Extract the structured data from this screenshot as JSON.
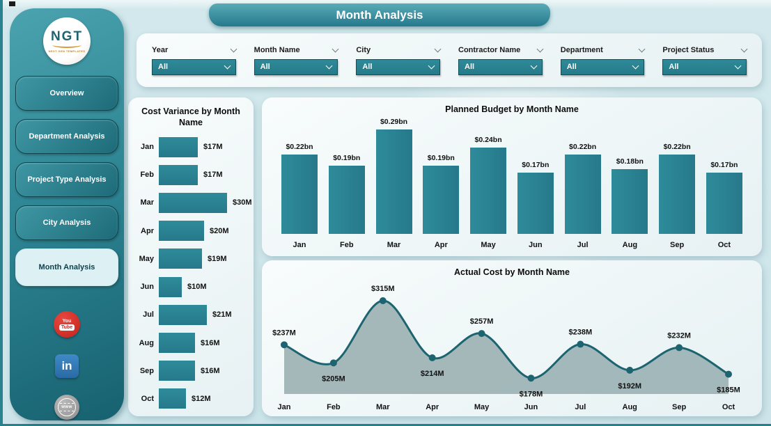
{
  "banner": {
    "title": "Month Analysis"
  },
  "sidebar": {
    "logo": {
      "text": "NGT",
      "subtext": "NEXT GEN TEMPLATES"
    },
    "items": [
      {
        "label": "Overview",
        "active": false
      },
      {
        "label": "Department Analysis",
        "active": false
      },
      {
        "label": "Project Type Analysis",
        "active": false
      },
      {
        "label": "City Analysis",
        "active": false
      },
      {
        "label": "Month Analysis",
        "active": true
      }
    ],
    "social": [
      {
        "name": "youtube",
        "you": "You",
        "tube": "Tube"
      },
      {
        "name": "linkedin",
        "text": "in"
      },
      {
        "name": "website",
        "text": "www"
      }
    ]
  },
  "filters": [
    {
      "label": "Year",
      "value": "All"
    },
    {
      "label": "Month Name",
      "value": "All"
    },
    {
      "label": "City",
      "value": "All"
    },
    {
      "label": "Contractor Name",
      "value": "All"
    },
    {
      "label": "Department",
      "value": "All"
    },
    {
      "label": "Project Status",
      "value": "All"
    }
  ],
  "colors": {
    "teal_main": "#2a8291",
    "teal_dark": "#1c6470",
    "area_fill": "#9fb4b6",
    "page_bg": "#cde5ea",
    "card_bg": "#eef6f7",
    "active_nav_bg": "#ddf0f4",
    "youtube_red": "#c4231c",
    "linkedin_blue": "#2a6aa5"
  },
  "chart_data": [
    {
      "type": "bar",
      "orientation": "horizontal",
      "title": "Cost Variance by Month Name",
      "categories": [
        "Jan",
        "Feb",
        "Mar",
        "Apr",
        "May",
        "Jun",
        "Jul",
        "Aug",
        "Sep",
        "Oct"
      ],
      "values": [
        17,
        17,
        30,
        20,
        19,
        10,
        21,
        16,
        16,
        12
      ],
      "labels": [
        "$17M",
        "$17M",
        "$30M",
        "$20M",
        "$19M",
        "$10M",
        "$21M",
        "$16M",
        "$16M",
        "$12M"
      ],
      "xlim": [
        0,
        30
      ],
      "grid": false,
      "legend": "none"
    },
    {
      "type": "bar",
      "orientation": "vertical",
      "title": "Planned Budget by Month Name",
      "categories": [
        "Jan",
        "Feb",
        "Mar",
        "Apr",
        "May",
        "Jun",
        "Jul",
        "Aug",
        "Sep",
        "Oct"
      ],
      "values": [
        0.22,
        0.19,
        0.29,
        0.19,
        0.24,
        0.17,
        0.22,
        0.18,
        0.22,
        0.17
      ],
      "labels": [
        "$0.22bn",
        "$0.19bn",
        "$0.29bn",
        "$0.19bn",
        "$0.24bn",
        "$0.17bn",
        "$0.22bn",
        "$0.18bn",
        "$0.22bn",
        "$0.17bn"
      ],
      "ylim": [
        0,
        0.29
      ],
      "grid": false,
      "legend": "none"
    },
    {
      "type": "area",
      "title": "Actual Cost by Month Name",
      "categories": [
        "Jan",
        "Feb",
        "Mar",
        "Apr",
        "May",
        "Jun",
        "Jul",
        "Aug",
        "Sep",
        "Oct"
      ],
      "values": [
        237,
        205,
        315,
        214,
        257,
        178,
        238,
        192,
        232,
        185
      ],
      "labels": [
        "$237M",
        "$205M",
        "$315M",
        "$214M",
        "$257M",
        "$178M",
        "$238M",
        "$192M",
        "$232M",
        "$185M"
      ],
      "ylim": [
        150,
        315
      ],
      "grid": false,
      "legend": "none"
    }
  ]
}
